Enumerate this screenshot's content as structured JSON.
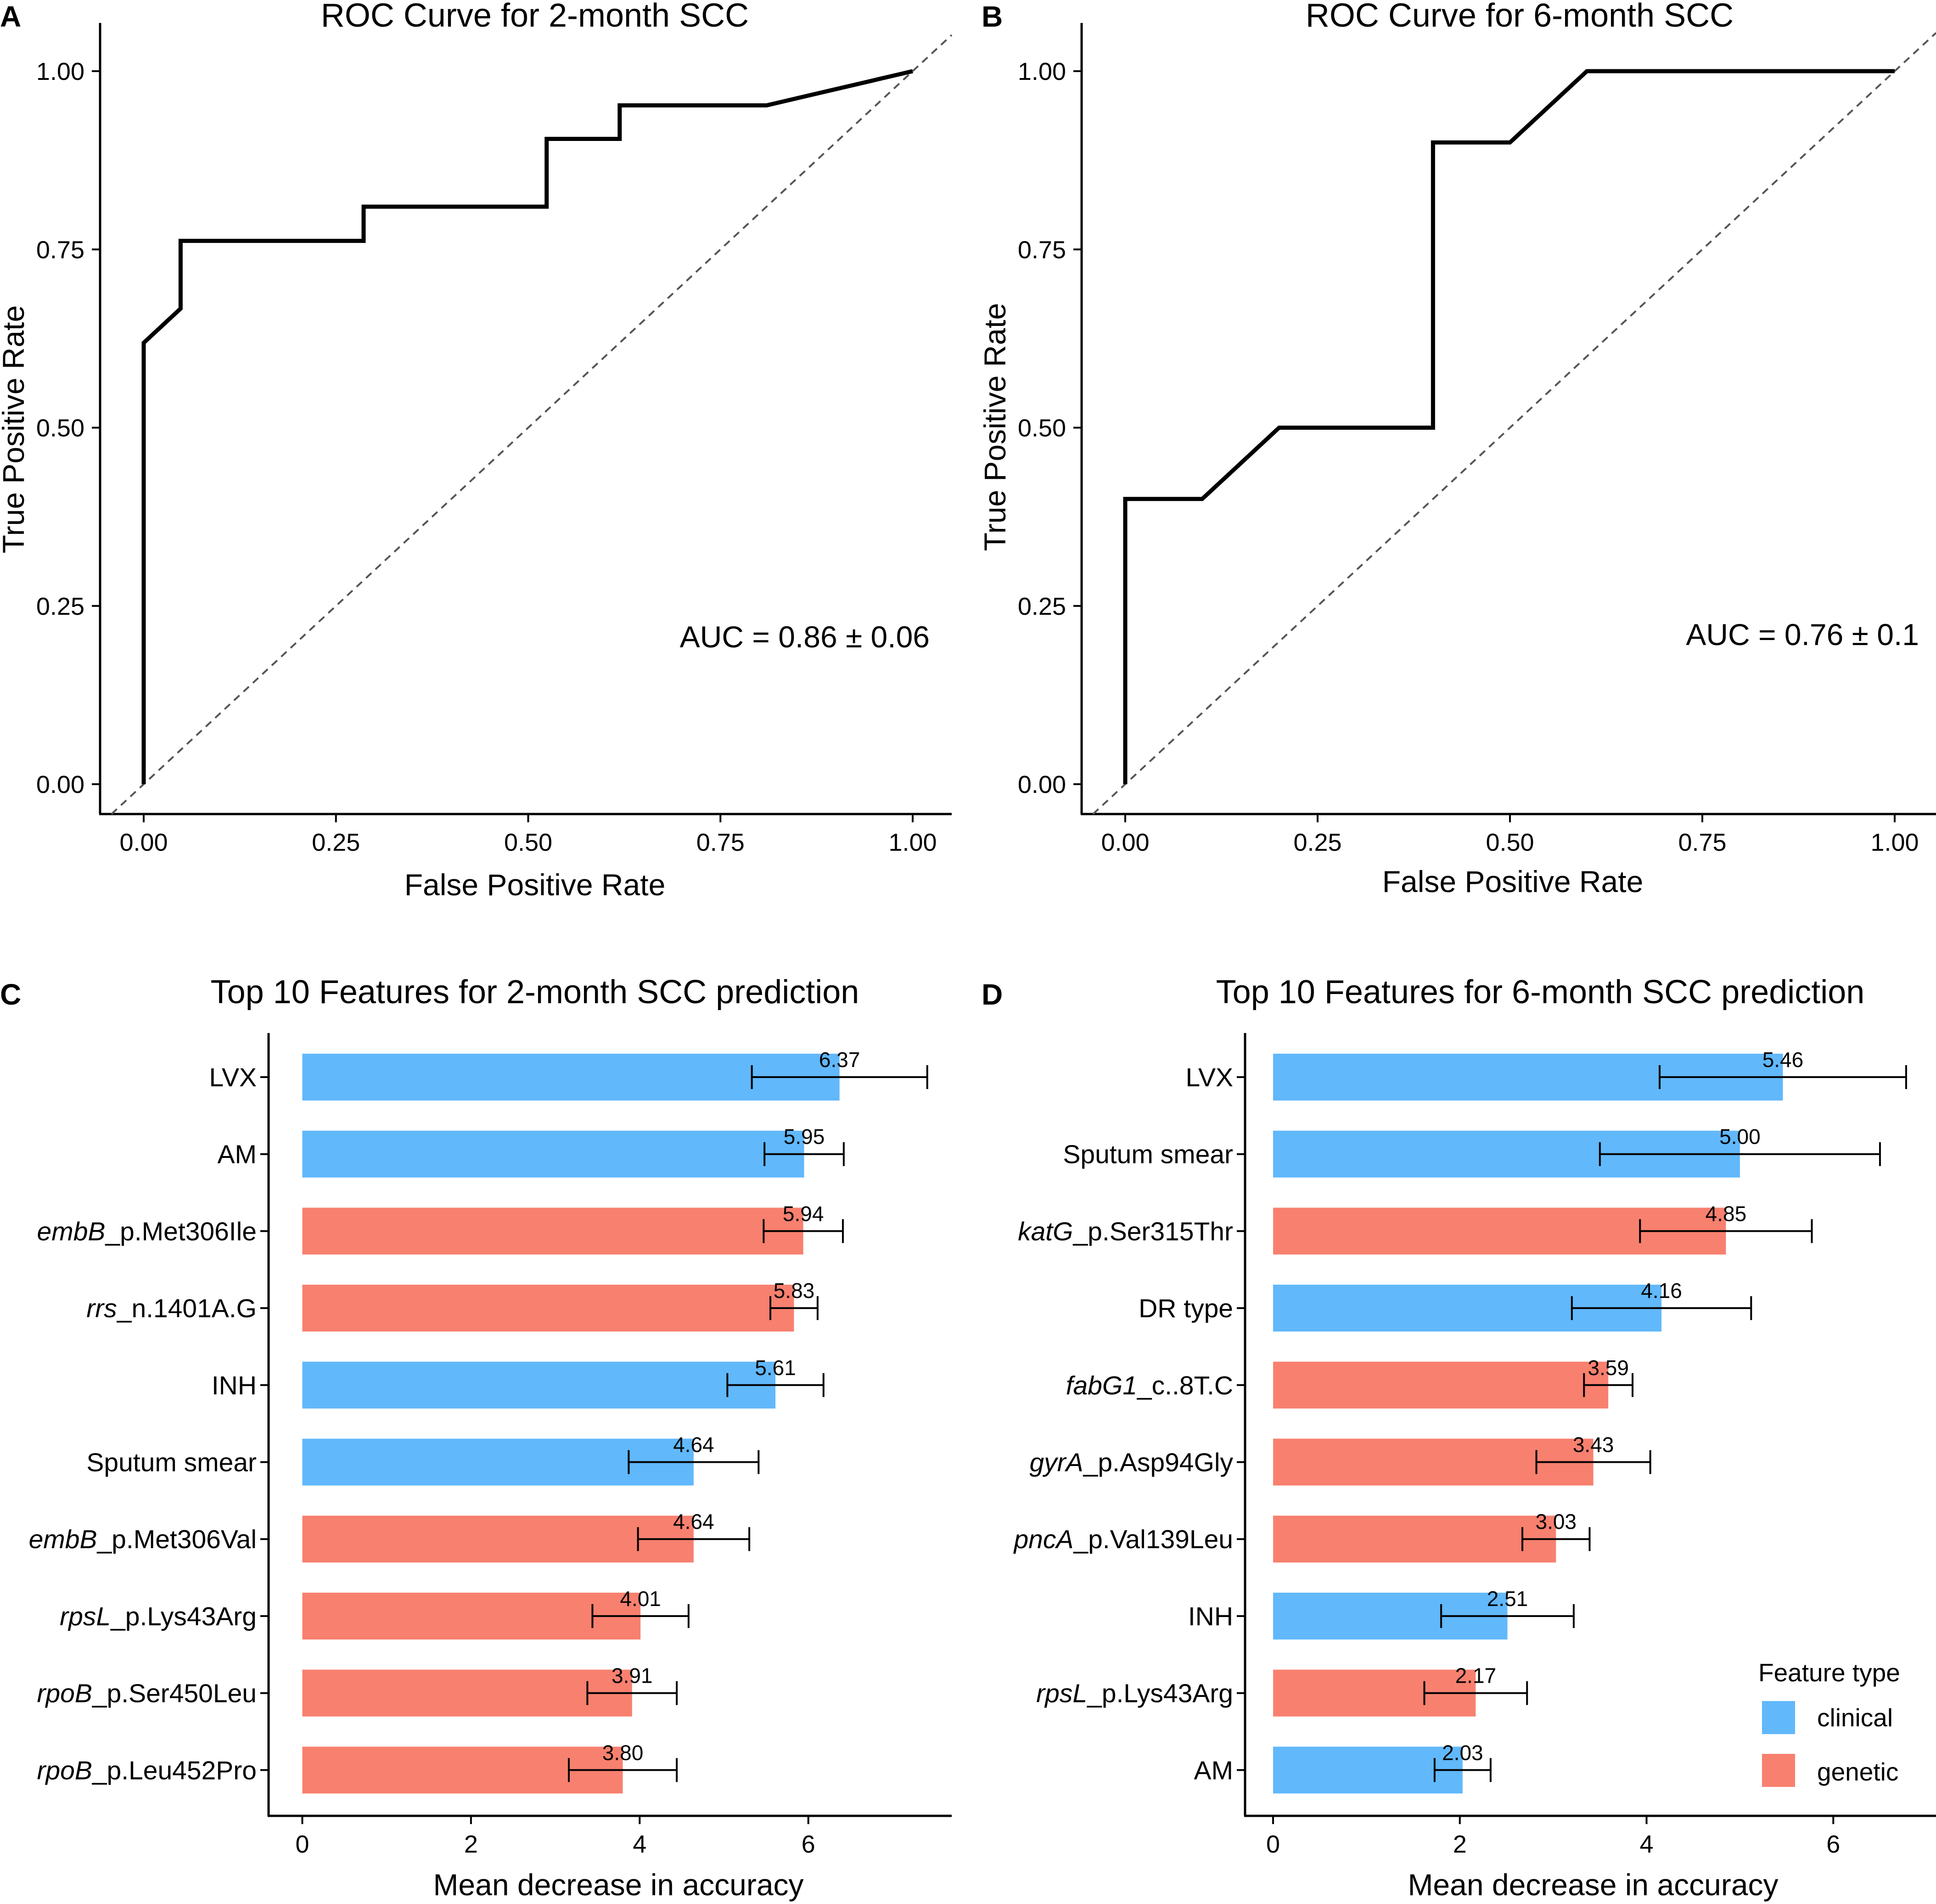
{
  "panel_letters": [
    "A",
    "B",
    "C",
    "D"
  ],
  "colors": {
    "clinical": "#61B8FB",
    "genetic": "#F8806F",
    "curve": "#000000",
    "diagonal": "#555555"
  },
  "chart_data": [
    {
      "type": "line",
      "panel": "A",
      "title": "ROC Curve for 2-month SCC",
      "xlabel": "False Positive Rate",
      "ylabel": "True Positive Rate",
      "xlim": [
        0,
        1
      ],
      "ylim": [
        0,
        1
      ],
      "xticks": [
        "0.00",
        "0.25",
        "0.50",
        "0.75",
        "1.00"
      ],
      "yticks": [
        "0.00",
        "0.25",
        "0.50",
        "0.75",
        "1.00"
      ],
      "annotation": "AUC = 0.86 ± 0.06",
      "diagonal": true,
      "series": [
        {
          "name": "ROC",
          "x": [
            0,
            0,
            0.048,
            0.048,
            0.286,
            0.286,
            0.524,
            0.524,
            0.619,
            0.619,
            0.81,
            1.0
          ],
          "y": [
            0,
            0.619,
            0.667,
            0.762,
            0.762,
            0.81,
            0.81,
            0.905,
            0.905,
            0.952,
            0.952,
            1.0
          ]
        }
      ]
    },
    {
      "type": "line",
      "panel": "B",
      "title": "ROC Curve for 6-month SCC",
      "xlabel": "False Positive Rate",
      "ylabel": "True Positive Rate",
      "xlim": [
        0,
        1
      ],
      "ylim": [
        0,
        1
      ],
      "xticks": [
        "0.00",
        "0.25",
        "0.50",
        "0.75",
        "1.00"
      ],
      "yticks": [
        "0.00",
        "0.25",
        "0.50",
        "0.75",
        "1.00"
      ],
      "annotation": "AUC = 0.76 ± 0.1",
      "diagonal": true,
      "series": [
        {
          "name": "ROC",
          "x": [
            0,
            0,
            0.1,
            0.2,
            0.4,
            0.4,
            0.5,
            0.6,
            1.0
          ],
          "y": [
            0,
            0.4,
            0.4,
            0.5,
            0.5,
            0.9,
            0.9,
            1.0,
            1.0
          ]
        }
      ]
    },
    {
      "type": "bar",
      "orientation": "horizontal",
      "panel": "C",
      "title": "Top 10 Features for 2-month SCC prediction",
      "xlabel": "Mean decrease in accuracy",
      "ylabel": "",
      "xlim": [
        -0.4,
        7.7
      ],
      "xticks": [
        0,
        2,
        4,
        6
      ],
      "categories": [
        {
          "gene": "",
          "rest": "LVX"
        },
        {
          "gene": "",
          "rest": "AM"
        },
        {
          "gene": "embB",
          "rest": "_p.Met306Ile"
        },
        {
          "gene": "rrs",
          "rest": "_n.1401A.G"
        },
        {
          "gene": "",
          "rest": "INH"
        },
        {
          "gene": "",
          "rest": "Sputum smear"
        },
        {
          "gene": "embB",
          "rest": "_p.Met306Val"
        },
        {
          "gene": "rpsL",
          "rest": "_p.Lys43Arg"
        },
        {
          "gene": "rpoB",
          "rest": "_p.Ser450Leu"
        },
        {
          "gene": "rpoB",
          "rest": "_p.Leu452Pro"
        }
      ],
      "values": [
        6.37,
        5.95,
        5.94,
        5.83,
        5.61,
        4.64,
        4.64,
        4.01,
        3.91,
        3.8
      ],
      "value_labels": [
        "6.37",
        "5.95",
        "5.94",
        "5.83",
        "5.61",
        "4.64",
        "4.64",
        "4.01",
        "3.91",
        "3.80"
      ],
      "err_low": [
        5.33,
        5.48,
        5.47,
        5.55,
        5.04,
        3.87,
        3.98,
        3.44,
        3.38,
        3.16
      ],
      "err_high": [
        7.41,
        6.42,
        6.41,
        6.11,
        6.18,
        5.41,
        5.3,
        4.58,
        4.44,
        4.44
      ],
      "feature_type": [
        "clinical",
        "clinical",
        "genetic",
        "genetic",
        "clinical",
        "clinical",
        "genetic",
        "genetic",
        "genetic",
        "genetic"
      ]
    },
    {
      "type": "bar",
      "orientation": "horizontal",
      "panel": "D",
      "title": "Top 10 Features for 6-month SCC prediction",
      "xlabel": "Mean decrease in accuracy",
      "ylabel": "",
      "xlim": [
        -0.3,
        7.1
      ],
      "xticks": [
        0,
        2,
        4,
        6
      ],
      "categories": [
        {
          "gene": "",
          "rest": "LVX"
        },
        {
          "gene": "",
          "rest": "Sputum smear"
        },
        {
          "gene": "katG",
          "rest": "_p.Ser315Thr"
        },
        {
          "gene": "",
          "rest": "DR type"
        },
        {
          "gene": "fabG1",
          "rest": "_c..8T.C"
        },
        {
          "gene": "gyrA",
          "rest": "_p.Asp94Gly"
        },
        {
          "gene": "pncA",
          "rest": "_p.Val139Leu"
        },
        {
          "gene": "",
          "rest": "INH"
        },
        {
          "gene": "rpsL",
          "rest": "_p.Lys43Arg"
        },
        {
          "gene": "",
          "rest": "AM"
        }
      ],
      "values": [
        5.46,
        5.0,
        4.85,
        4.16,
        3.59,
        3.43,
        3.03,
        2.51,
        2.17,
        2.03
      ],
      "value_labels": [
        "5.46",
        "5.00",
        "4.85",
        "4.16",
        "3.59",
        "3.43",
        "3.03",
        "2.51",
        "2.17",
        "2.03"
      ],
      "err_low": [
        4.14,
        3.5,
        3.93,
        3.2,
        3.33,
        2.82,
        2.67,
        1.8,
        1.62,
        1.73
      ],
      "err_high": [
        6.78,
        6.5,
        5.77,
        5.12,
        3.85,
        4.04,
        3.39,
        3.22,
        2.72,
        2.33
      ],
      "feature_type": [
        "clinical",
        "clinical",
        "genetic",
        "clinical",
        "genetic",
        "genetic",
        "genetic",
        "clinical",
        "genetic",
        "clinical"
      ],
      "legend": {
        "title": "Feature type",
        "items": [
          {
            "key": "clinical",
            "label": "clinical"
          },
          {
            "key": "genetic",
            "label": "genetic"
          }
        ]
      }
    }
  ]
}
